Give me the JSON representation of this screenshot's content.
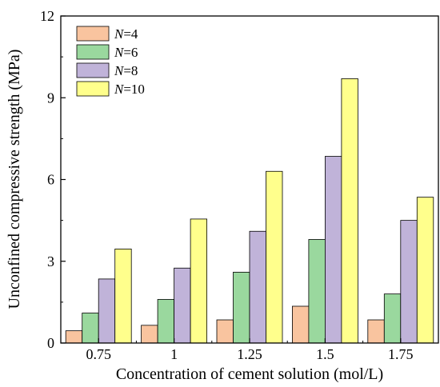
{
  "chart_data": {
    "type": "bar",
    "xlabel": "Concentration of cement solution (mol/L)",
    "ylabel": "Unconfined compressive strength (MPa)",
    "categories": [
      "0.75",
      "1",
      "1.25",
      "1.5",
      "1.75"
    ],
    "ylim": [
      0,
      12
    ],
    "yticks": [
      "0",
      "3",
      "6",
      "9",
      "12"
    ],
    "grid": false,
    "legend_position": "top-left",
    "series": [
      {
        "name": "N=4",
        "var": "N",
        "value_label": "=4",
        "color": "#f9c49f",
        "values": [
          0.45,
          0.65,
          0.85,
          1.35,
          0.85
        ]
      },
      {
        "name": "N=6",
        "var": "N",
        "value_label": "=6",
        "color": "#9ad89e",
        "values": [
          1.1,
          1.6,
          2.6,
          3.8,
          1.8
        ]
      },
      {
        "name": "N=8",
        "var": "N",
        "value_label": "=8",
        "color": "#c0b3d9",
        "values": [
          2.35,
          2.75,
          4.1,
          6.85,
          4.5
        ]
      },
      {
        "name": "N=10",
        "var": "N",
        "value_label": "=10",
        "color": "#ffff8c",
        "values": [
          3.45,
          4.55,
          6.3,
          9.7,
          5.35
        ]
      }
    ]
  }
}
